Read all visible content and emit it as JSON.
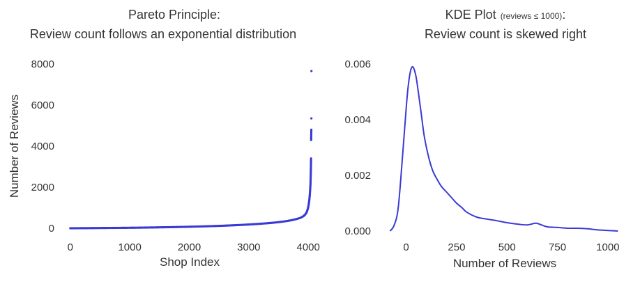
{
  "chart_data": [
    {
      "type": "scatter",
      "title_line1": "Pareto Principle:",
      "title_line2": "Review count follows an exponential distribution",
      "xlabel": "Shop Index",
      "ylabel": "Number of Reviews",
      "xlim": [
        -150,
        4150
      ],
      "ylim": [
        -400,
        8400
      ],
      "xticks": [
        0,
        1000,
        2000,
        3000,
        4000
      ],
      "yticks": [
        0,
        2000,
        4000,
        6000,
        8000
      ],
      "grid": false,
      "marker_color": "#3a3ad6",
      "points": [
        [
          0,
          5
        ],
        [
          100,
          8
        ],
        [
          200,
          10
        ],
        [
          300,
          12
        ],
        [
          400,
          15
        ],
        [
          500,
          17
        ],
        [
          600,
          20
        ],
        [
          700,
          22
        ],
        [
          800,
          25
        ],
        [
          900,
          27
        ],
        [
          1000,
          30
        ],
        [
          1100,
          33
        ],
        [
          1200,
          37
        ],
        [
          1300,
          41
        ],
        [
          1400,
          45
        ],
        [
          1500,
          50
        ],
        [
          1600,
          55
        ],
        [
          1700,
          60
        ],
        [
          1800,
          66
        ],
        [
          1900,
          72
        ],
        [
          2000,
          79
        ],
        [
          2100,
          86
        ],
        [
          2200,
          94
        ],
        [
          2300,
          103
        ],
        [
          2400,
          112
        ],
        [
          2500,
          122
        ],
        [
          2600,
          133
        ],
        [
          2700,
          145
        ],
        [
          2800,
          158
        ],
        [
          2900,
          172
        ],
        [
          3000,
          188
        ],
        [
          3100,
          206
        ],
        [
          3200,
          226
        ],
        [
          3300,
          248
        ],
        [
          3400,
          273
        ],
        [
          3500,
          302
        ],
        [
          3550,
          320
        ],
        [
          3600,
          340
        ],
        [
          3650,
          362
        ],
        [
          3700,
          388
        ],
        [
          3750,
          418
        ],
        [
          3800,
          452
        ],
        [
          3850,
          495
        ],
        [
          3880,
          530
        ],
        [
          3900,
          560
        ],
        [
          3920,
          600
        ],
        [
          3940,
          650
        ],
        [
          3960,
          720
        ],
        [
          3970,
          770
        ],
        [
          3980,
          840
        ],
        [
          3990,
          930
        ],
        [
          4000,
          1050
        ],
        [
          4005,
          1130
        ],
        [
          4010,
          1220
        ],
        [
          4015,
          1330
        ],
        [
          4020,
          1460
        ],
        [
          4025,
          1620
        ],
        [
          4030,
          1820
        ],
        [
          4035,
          2050
        ],
        [
          4038,
          2250
        ],
        [
          4040,
          2450
        ],
        [
          4042,
          2700
        ],
        [
          4044,
          3000
        ],
        [
          4045,
          3150
        ],
        [
          4046,
          3300
        ],
        [
          4047,
          3400
        ],
        [
          4048,
          4300
        ],
        [
          4049,
          4500
        ],
        [
          4050,
          4650
        ],
        [
          4051,
          4800
        ],
        [
          4052,
          5350
        ],
        [
          4053,
          7650
        ]
      ]
    },
    {
      "type": "line",
      "title_part1": "KDE Plot",
      "title_part2": "(reviews ≤ 1000)",
      "title_part3": ":",
      "title_line2": "Review count is skewed right",
      "xlabel": "Number of Reviews",
      "ylabel": "",
      "xlim": [
        -130,
        1080
      ],
      "ylim": [
        -0.0002,
        0.0063
      ],
      "xticks": [
        0,
        250,
        500,
        750,
        1000
      ],
      "yticks": [
        0.0,
        0.002,
        0.004,
        0.006
      ],
      "ytick_labels": [
        "0.000",
        "0.002",
        "0.004",
        "0.006"
      ],
      "grid": false,
      "line_color": "#3a3ad6",
      "x": [
        -80,
        -60,
        -40,
        -20,
        0,
        10,
        20,
        30,
        40,
        50,
        60,
        75,
        90,
        110,
        130,
        150,
        175,
        200,
        225,
        250,
        275,
        300,
        350,
        400,
        450,
        500,
        550,
        600,
        640,
        660,
        700,
        750,
        800,
        850,
        900,
        950,
        1000,
        1050
      ],
      "y": [
        0.0,
        0.0002,
        0.0008,
        0.0025,
        0.0044,
        0.0052,
        0.0057,
        0.0059,
        0.0058,
        0.0055,
        0.005,
        0.0042,
        0.0034,
        0.0027,
        0.0022,
        0.0019,
        0.0016,
        0.0014,
        0.0012,
        0.001,
        0.00085,
        0.00068,
        0.0005,
        0.00043,
        0.00037,
        0.0003,
        0.00025,
        0.00022,
        0.00028,
        0.00025,
        0.00015,
        0.00013,
        0.0001,
        0.0001,
        8e-05,
        4e-05,
        2e-05,
        0.0
      ]
    }
  ]
}
